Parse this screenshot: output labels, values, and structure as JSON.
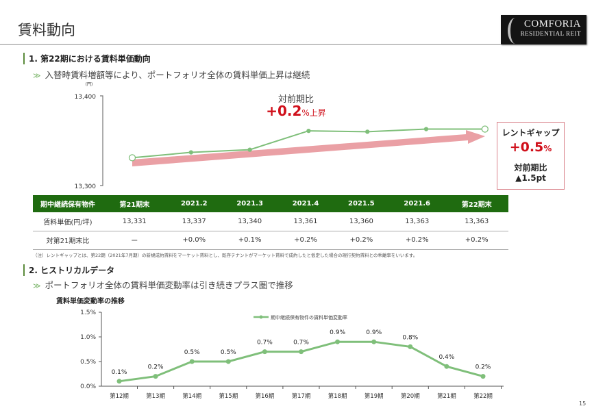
{
  "page": {
    "title": "賃料動向",
    "page_number": "15"
  },
  "logo": {
    "line1": "COMFORIA",
    "line2": "RESIDENTIAL REIT"
  },
  "section1": {
    "heading": "1. 第22期における賃料単価動向",
    "bullet": "入替時賃料増額等により、ポートフォリオ全体の賃料単価上昇は継続",
    "callout_label": "対前期比",
    "callout_value": "+0.2",
    "callout_unit": "%上昇",
    "rent_gap": {
      "label": "レントギャップ",
      "value": "+0.5",
      "unit": "%",
      "compare_label": "対前期比",
      "compare_value": "▲1.5pt"
    },
    "footnote": "（注）レントギャップとは、第22期（2021年7月期）の新規成約賃料をマーケット賃料とし、既存テナントがマーケット賃料で成約したと仮定した場合の現行契約賃料との乖離率をいいます。"
  },
  "table": {
    "headers": [
      "期中継続保有物件",
      "第21期末",
      "2021.2",
      "2021.3",
      "2021.4",
      "2021.5",
      "2021.6",
      "第22期末"
    ],
    "rows": [
      [
        "賃料単価(円/坪)",
        "13,331",
        "13,337",
        "13,340",
        "13,361",
        "13,360",
        "13,363",
        "13,363"
      ],
      [
        "対第21期末比",
        "ー",
        "+0.0%",
        "+0.1%",
        "+0.2%",
        "+0.2%",
        "+0.2%",
        "+0.2%"
      ]
    ]
  },
  "section2": {
    "heading": "2. ヒストリカルデータ",
    "bullet": "ポートフォリオ全体の賃料単価変動率は引き続きプラス圏で推移",
    "chart_title": "賃料単価変動率の推移"
  },
  "colors": {
    "line": "#7fbf7a",
    "arrow": "#eaa0a5",
    "accent_red": "#d0101b",
    "table_header": "#1f6b10"
  },
  "chart_data": [
    {
      "type": "line",
      "unit_label": "(円)",
      "categories": [
        "第21期末",
        "2021.2",
        "2021.3",
        "2021.4",
        "2021.5",
        "2021.6",
        "第22期末"
      ],
      "values": [
        13331,
        13337,
        13340,
        13361,
        13360,
        13363,
        13363
      ],
      "ylim": [
        13300,
        13400
      ],
      "yticks": [
        "13,400",
        "13,300"
      ],
      "grid": false,
      "trend_arrow": true
    },
    {
      "type": "line",
      "legend": "期中継続保有物件の賃料単価変動率",
      "legend_position": "top-center",
      "categories": [
        "第12期",
        "第13期",
        "第14期",
        "第15期",
        "第16期",
        "第17期",
        "第18期",
        "第19期",
        "第20期",
        "第21期",
        "第22期"
      ],
      "values": [
        0.1,
        0.2,
        0.5,
        0.5,
        0.7,
        0.7,
        0.9,
        0.9,
        0.8,
        0.4,
        0.2
      ],
      "labels": [
        "0.1%",
        "0.2%",
        "0.5%",
        "0.5%",
        "0.7%",
        "0.7%",
        "0.9%",
        "0.9%",
        "0.8%",
        "0.4%",
        "0.2%"
      ],
      "ylim": [
        0,
        1.5
      ],
      "yticks": [
        "0.0%",
        "0.5%",
        "1.0%",
        "1.5%"
      ],
      "grid": false
    }
  ]
}
